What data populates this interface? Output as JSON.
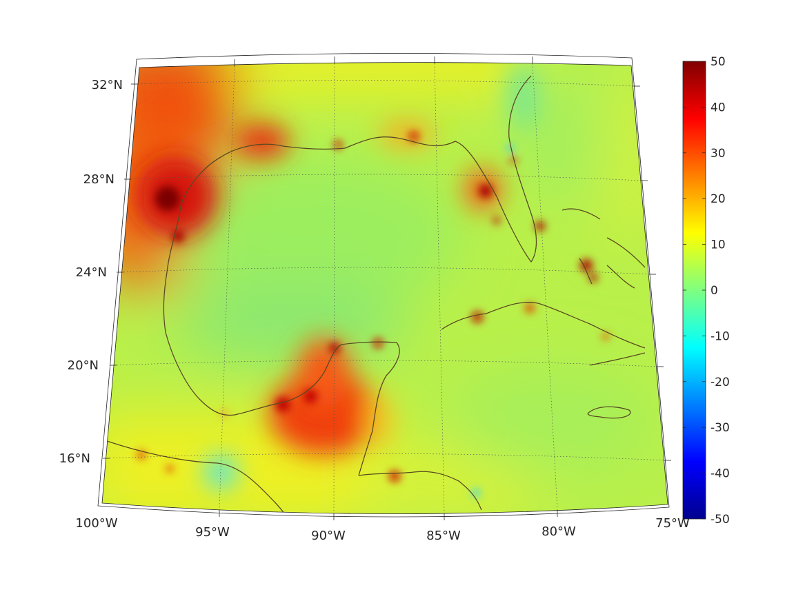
{
  "map": {
    "lat_labels": [
      {
        "lat": 32,
        "label": "32°N"
      },
      {
        "lat": 28,
        "label": "28°N"
      },
      {
        "lat": 24,
        "label": "24°N"
      },
      {
        "lat": 20,
        "label": "20°N"
      },
      {
        "lat": 16,
        "label": "16°N"
      }
    ],
    "lon_labels": [
      {
        "lon": -100,
        "label": "100°W"
      },
      {
        "lon": -95,
        "label": "95°W"
      },
      {
        "lon": -90,
        "label": "90°W"
      },
      {
        "lon": -85,
        "label": "85°W"
      },
      {
        "lon": -80,
        "label": "80°W"
      },
      {
        "lon": -75,
        "label": "75°W"
      }
    ],
    "extent": {
      "lon": [
        -100,
        -75
      ],
      "lat": [
        14,
        33
      ]
    },
    "coastline_color": "#5a4a22",
    "grid": true
  },
  "colorbar": {
    "ticks": [
      "50",
      "40",
      "30",
      "20",
      "10",
      "0",
      "-10",
      "-20",
      "-30",
      "-40",
      "-50"
    ],
    "range": [
      -50,
      50
    ],
    "colormap": "jet"
  }
}
